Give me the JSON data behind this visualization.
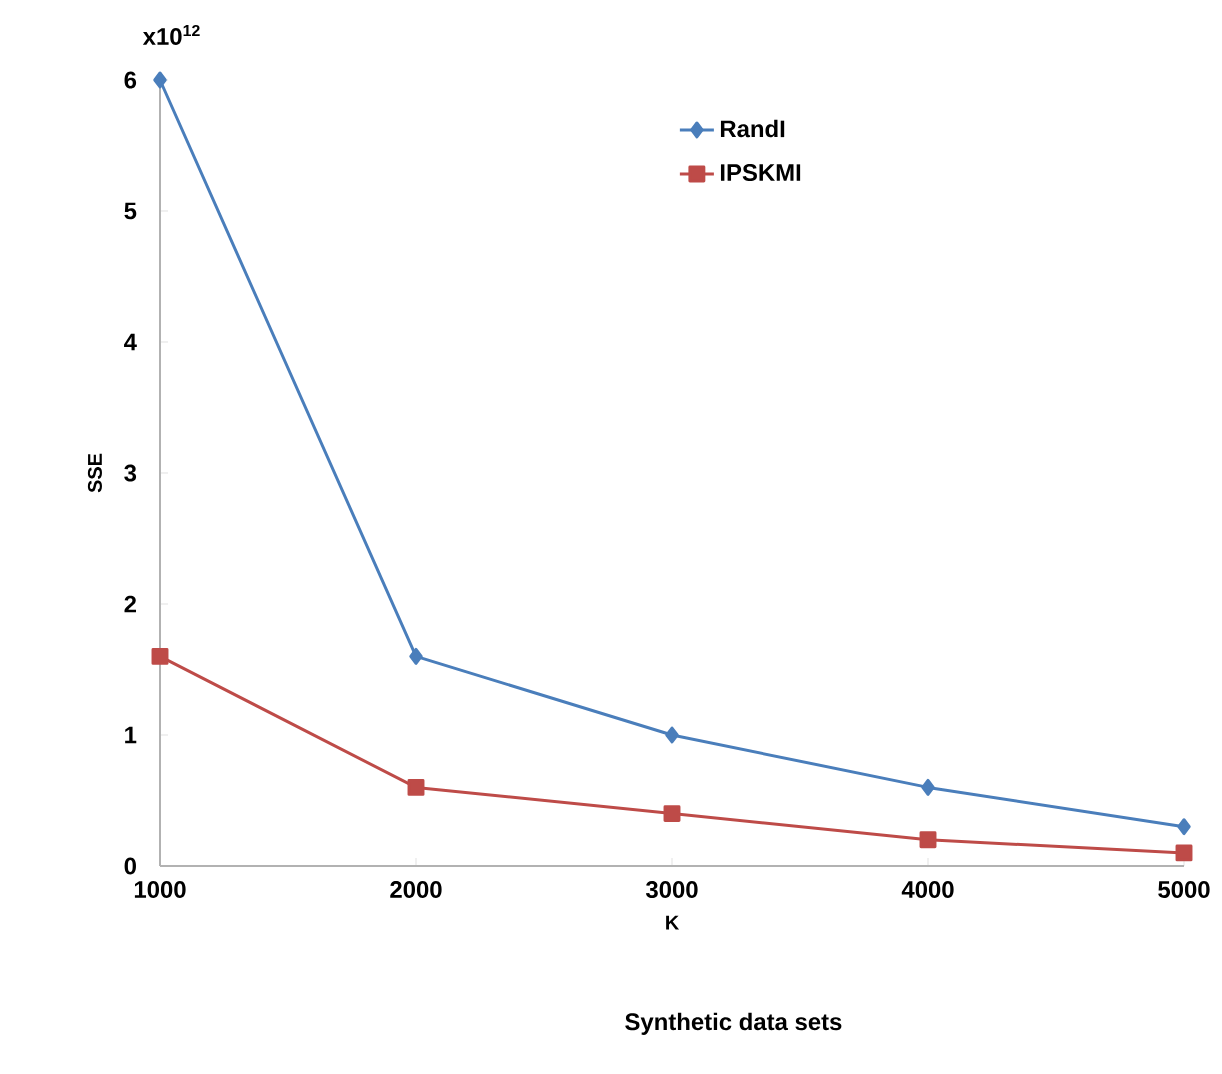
{
  "chart_data": {
    "type": "line",
    "xlabel": "K",
    "ylabel": "SSE",
    "annotations": [
      "x10$^{12}$",
      "Synthetic data sets"
    ],
    "x": [
      1000,
      2000,
      3000,
      4000,
      5000
    ],
    "series": [
      {
        "name": "RandI",
        "color": "#4a7ebb",
        "marker": "diamond",
        "values": [
          6,
          1.6,
          1,
          0.6,
          0.3
        ]
      },
      {
        "name": "IPSKMI",
        "color": "#be4b48",
        "marker": "square",
        "values": [
          1.6,
          0.6,
          0.4,
          0.2,
          0.1
        ]
      }
    ],
    "xlim": [
      1000,
      5000
    ],
    "xticks": [
      1000,
      2000,
      3000,
      4000,
      5000
    ],
    "ylim": [
      0,
      6
    ],
    "yticks": [
      0,
      1,
      2,
      3,
      4,
      5,
      6
    ],
    "legend": "top",
    "grid": false,
    "line_style": "solid"
  }
}
